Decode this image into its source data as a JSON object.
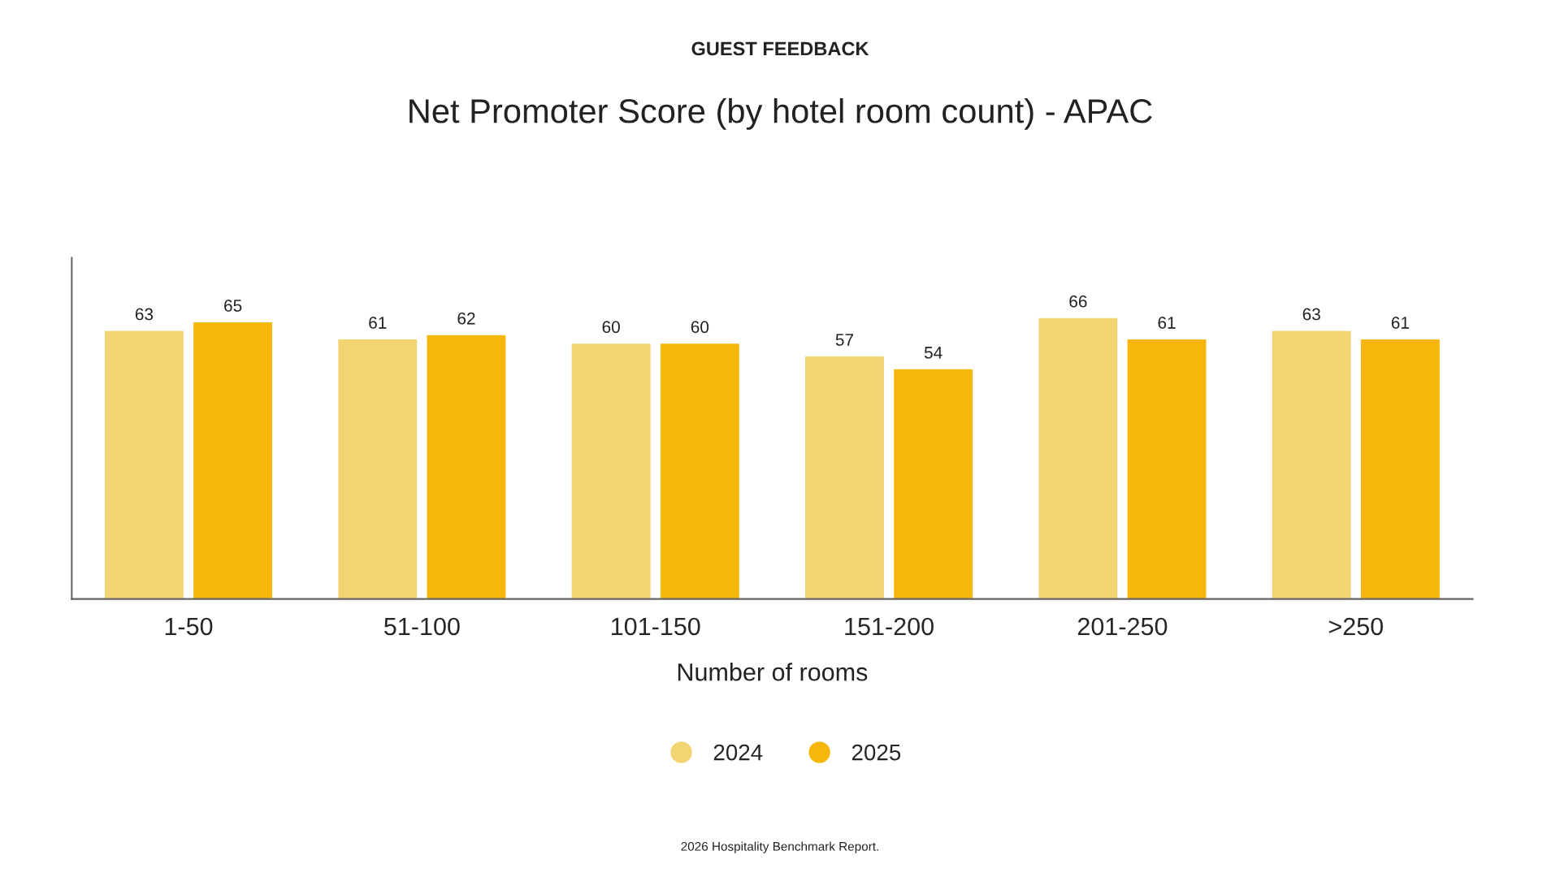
{
  "chart_data": {
    "type": "bar",
    "title": "Net Promoter Score (by hotel room count) - APAC",
    "subtitle": "GUEST FEEDBACK",
    "xlabel": "Number of rooms",
    "categories": [
      "1-50",
      "51-100",
      "101-150",
      "151-200",
      "201-250",
      ">250"
    ],
    "series": [
      {
        "name": "2024",
        "color": "#f2d472",
        "values": [
          63,
          61,
          60,
          57,
          66,
          63
        ]
      },
      {
        "name": "2025",
        "color": "#f6b70a",
        "values": [
          65,
          62,
          60,
          54,
          61,
          61
        ]
      }
    ],
    "ylim": [
      0,
      80
    ],
    "data_labels": true,
    "legend": "bottom",
    "grid": false,
    "tick_labels": "x",
    "annotations": [
      "2026 Hospitality Benchmark Report."
    ]
  }
}
